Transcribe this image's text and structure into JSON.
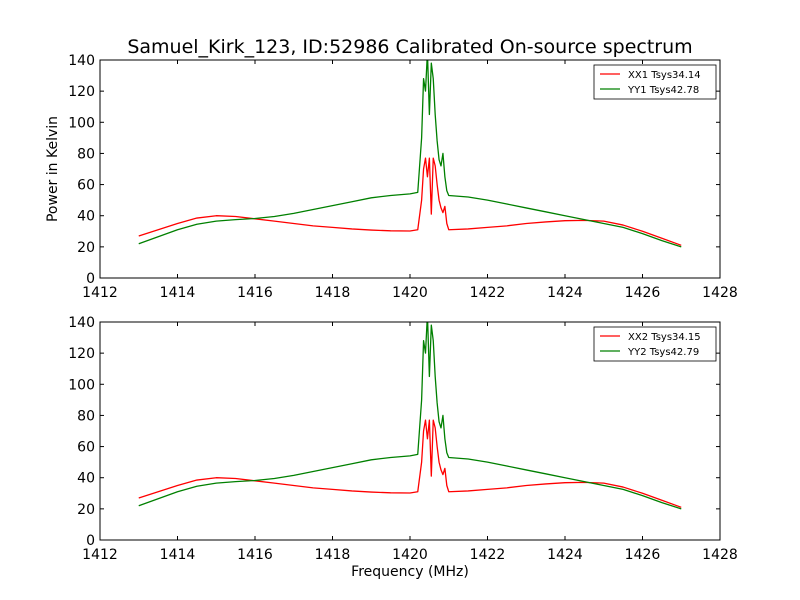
{
  "chart_data": [
    {
      "type": "line",
      "title": "Samuel_Kirk_123, ID:52986 Calibrated On-source spectrum",
      "xlabel": "",
      "ylabel": "Power in Kelvin",
      "xlim": [
        1412,
        1428
      ],
      "ylim": [
        0,
        140
      ],
      "xticks": [
        "1412",
        "1414",
        "1416",
        "1418",
        "1420",
        "1422",
        "1424",
        "1426",
        "1428"
      ],
      "yticks": [
        "0",
        "20",
        "40",
        "60",
        "80",
        "100",
        "120",
        "140"
      ],
      "legend_position": "top-right",
      "series": [
        {
          "name": "XX1 Tsys34.14",
          "color": "#ff0000",
          "x": [
            1413.0,
            1413.5,
            1414.0,
            1414.5,
            1415.0,
            1415.5,
            1416.0,
            1416.5,
            1417.0,
            1417.5,
            1418.0,
            1418.5,
            1419.0,
            1419.5,
            1420.0,
            1420.2,
            1420.3,
            1420.35,
            1420.4,
            1420.45,
            1420.5,
            1420.55,
            1420.6,
            1420.65,
            1420.7,
            1420.75,
            1420.8,
            1420.85,
            1420.9,
            1420.95,
            1421.0,
            1421.5,
            1422.0,
            1422.5,
            1423.0,
            1423.5,
            1424.0,
            1424.5,
            1425.0,
            1425.5,
            1426.0,
            1426.5,
            1427.0
          ],
          "y": [
            27,
            31,
            35,
            38.5,
            40,
            39.5,
            38,
            36.5,
            35,
            33.5,
            32.5,
            31.5,
            30.8,
            30.3,
            30.2,
            31,
            50,
            70,
            77,
            65,
            77,
            41,
            77,
            72,
            60,
            50,
            45,
            42,
            46,
            35,
            31,
            31.5,
            32.5,
            33.5,
            35,
            36,
            36.8,
            37,
            36.5,
            34,
            30,
            25.5,
            21
          ]
        },
        {
          "name": "YY1 Tsys42.78",
          "color": "#008000",
          "x": [
            1413.0,
            1413.5,
            1414.0,
            1414.5,
            1415.0,
            1415.5,
            1416.0,
            1416.5,
            1417.0,
            1417.5,
            1418.0,
            1418.5,
            1419.0,
            1419.5,
            1420.0,
            1420.2,
            1420.3,
            1420.35,
            1420.4,
            1420.45,
            1420.5,
            1420.55,
            1420.6,
            1420.65,
            1420.7,
            1420.75,
            1420.8,
            1420.85,
            1420.9,
            1420.95,
            1421.0,
            1421.5,
            1422.0,
            1422.5,
            1423.0,
            1423.5,
            1424.0,
            1424.5,
            1425.0,
            1425.5,
            1426.0,
            1426.5,
            1427.0
          ],
          "y": [
            22,
            26.5,
            31,
            34.5,
            36.5,
            37.5,
            38.2,
            39.5,
            41.5,
            44,
            46.5,
            49,
            51.5,
            53,
            54,
            55,
            90,
            128,
            120,
            145,
            105,
            138,
            128,
            105,
            88,
            76,
            72,
            80,
            65,
            56,
            53,
            52,
            50,
            47.5,
            45,
            42.5,
            40,
            37.5,
            35,
            32.5,
            28.5,
            24,
            20
          ]
        }
      ]
    },
    {
      "type": "line",
      "title": "",
      "xlabel": "Frequency (MHz)",
      "ylabel": "",
      "xlim": [
        1412,
        1428
      ],
      "ylim": [
        0,
        140
      ],
      "xticks": [
        "1412",
        "1414",
        "1416",
        "1418",
        "1420",
        "1422",
        "1424",
        "1426",
        "1428"
      ],
      "yticks": [
        "0",
        "20",
        "40",
        "60",
        "80",
        "100",
        "120",
        "140"
      ],
      "legend_position": "top-right",
      "series": [
        {
          "name": "XX2 Tsys34.15",
          "color": "#ff0000",
          "x": [
            1413.0,
            1413.5,
            1414.0,
            1414.5,
            1415.0,
            1415.5,
            1416.0,
            1416.5,
            1417.0,
            1417.5,
            1418.0,
            1418.5,
            1419.0,
            1419.5,
            1420.0,
            1420.2,
            1420.3,
            1420.35,
            1420.4,
            1420.45,
            1420.5,
            1420.55,
            1420.6,
            1420.65,
            1420.7,
            1420.75,
            1420.8,
            1420.85,
            1420.9,
            1420.95,
            1421.0,
            1421.5,
            1422.0,
            1422.5,
            1423.0,
            1423.5,
            1424.0,
            1424.5,
            1425.0,
            1425.5,
            1426.0,
            1426.5,
            1427.0
          ],
          "y": [
            27,
            31,
            35,
            38.5,
            40,
            39.5,
            38,
            36.5,
            35,
            33.5,
            32.5,
            31.5,
            30.8,
            30.3,
            30.2,
            31,
            50,
            70,
            77,
            65,
            77,
            41,
            77,
            72,
            60,
            50,
            45,
            42,
            46,
            35,
            31,
            31.5,
            32.5,
            33.5,
            35,
            36,
            36.8,
            37,
            36.5,
            34,
            30,
            25.5,
            21
          ]
        },
        {
          "name": "YY2 Tsys42.79",
          "color": "#008000",
          "x": [
            1413.0,
            1413.5,
            1414.0,
            1414.5,
            1415.0,
            1415.5,
            1416.0,
            1416.5,
            1417.0,
            1417.5,
            1418.0,
            1418.5,
            1419.0,
            1419.5,
            1420.0,
            1420.2,
            1420.3,
            1420.35,
            1420.4,
            1420.45,
            1420.5,
            1420.55,
            1420.6,
            1420.65,
            1420.7,
            1420.75,
            1420.8,
            1420.85,
            1420.9,
            1420.95,
            1421.0,
            1421.5,
            1422.0,
            1422.5,
            1423.0,
            1423.5,
            1424.0,
            1424.5,
            1425.0,
            1425.5,
            1426.0,
            1426.5,
            1427.0
          ],
          "y": [
            22,
            26.5,
            31,
            34.5,
            36.5,
            37.5,
            38.2,
            39.5,
            41.5,
            44,
            46.5,
            49,
            51.5,
            53,
            54,
            55,
            90,
            128,
            120,
            145,
            105,
            138,
            128,
            105,
            88,
            76,
            72,
            80,
            65,
            56,
            53,
            52,
            50,
            47.5,
            45,
            42.5,
            40,
            37.5,
            35,
            32.5,
            28.5,
            24,
            20
          ]
        }
      ]
    }
  ]
}
